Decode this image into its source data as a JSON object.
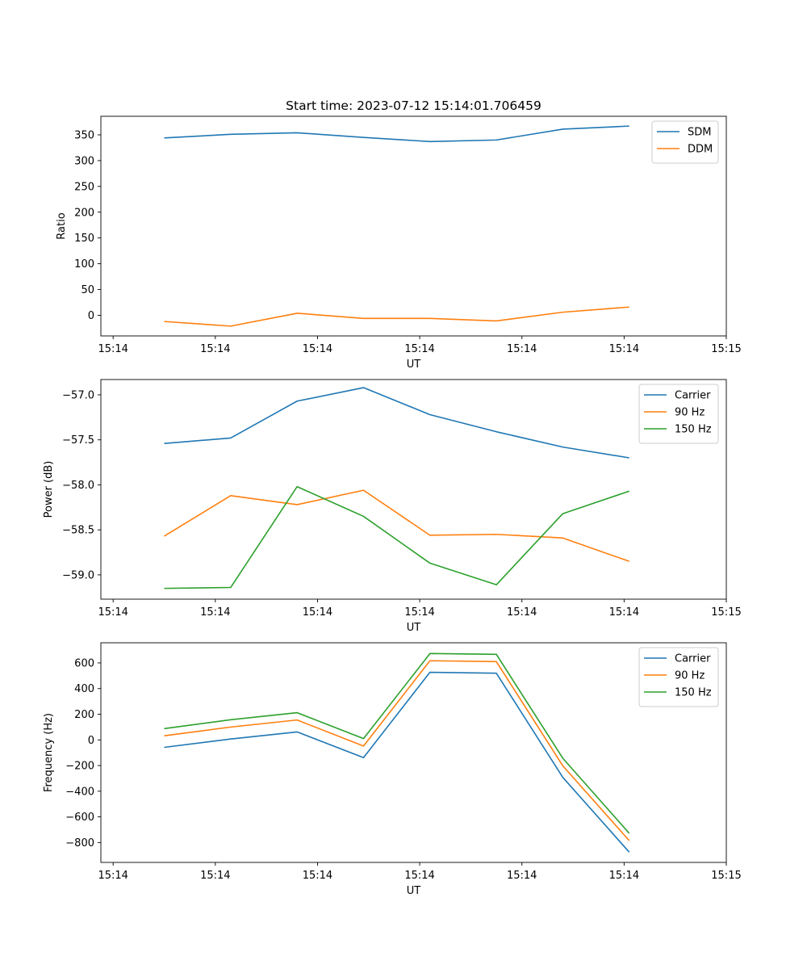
{
  "figure": {
    "title": "Start time: 2023-07-12 15:14:01.706459",
    "x_tick_labels": [
      "15:14",
      "15:14",
      "15:14",
      "15:14",
      "15:14",
      "15:14",
      "15:15"
    ]
  },
  "colors": {
    "series1": "#1f77b4",
    "series2": "#ff7f0e",
    "series3": "#2ca02c"
  },
  "chart_data": [
    {
      "type": "line",
      "title": "Start time: 2023-07-12 15:14:01.706459",
      "xlabel": "UT",
      "ylabel": "Ratio",
      "x": [
        0.5,
        1.15,
        1.8,
        2.45,
        3.1,
        3.75,
        4.4,
        5.05
      ],
      "xlim": [
        -0.12,
        6.0
      ],
      "xticks": [
        0,
        1,
        2,
        3,
        4,
        5,
        6
      ],
      "xtick_labels": [
        "15:14",
        "15:14",
        "15:14",
        "15:14",
        "15:14",
        "15:14",
        "15:15"
      ],
      "ylim": [
        -40,
        386
      ],
      "yticks": [
        0,
        50,
        100,
        150,
        200,
        250,
        300,
        350
      ],
      "ytick_labels": [
        "0",
        "50",
        "100",
        "150",
        "200",
        "250",
        "300",
        "350"
      ],
      "legend_position": "top-right",
      "series": [
        {
          "name": "SDM",
          "color": "#1f77b4",
          "values": [
            344,
            351,
            354,
            345,
            337,
            340,
            361,
            367
          ]
        },
        {
          "name": "DDM",
          "color": "#ff7f0e",
          "values": [
            -12,
            -21,
            4,
            -6,
            -6,
            -11,
            6,
            16
          ]
        }
      ]
    },
    {
      "type": "line",
      "xlabel": "UT",
      "ylabel": "Power (dB)",
      "x": [
        0.5,
        1.15,
        1.8,
        2.45,
        3.1,
        3.75,
        4.4,
        5.05
      ],
      "xlim": [
        -0.12,
        6.0
      ],
      "xticks": [
        0,
        1,
        2,
        3,
        4,
        5,
        6
      ],
      "xtick_labels": [
        "15:14",
        "15:14",
        "15:14",
        "15:14",
        "15:14",
        "15:14",
        "15:15"
      ],
      "ylim": [
        -59.27,
        -56.83
      ],
      "yticks": [
        -59.0,
        -58.5,
        -58.0,
        -57.5,
        -57.0
      ],
      "ytick_labels": [
        "−59.0",
        "−58.5",
        "−58.0",
        "−57.5",
        "−57.0"
      ],
      "legend_position": "top-right",
      "series": [
        {
          "name": "Carrier",
          "color": "#1f77b4",
          "values": [
            -57.54,
            -57.48,
            -57.07,
            -56.92,
            -57.22,
            -57.41,
            -57.58,
            -57.7
          ]
        },
        {
          "name": "90 Hz",
          "color": "#ff7f0e",
          "values": [
            -58.57,
            -58.12,
            -58.22,
            -58.06,
            -58.56,
            -58.55,
            -58.59,
            -58.85
          ]
        },
        {
          "name": "150 Hz",
          "color": "#2ca02c",
          "values": [
            -59.15,
            -59.14,
            -58.02,
            -58.35,
            -58.87,
            -59.11,
            -58.32,
            -58.07
          ]
        }
      ]
    },
    {
      "type": "line",
      "xlabel": "UT",
      "ylabel": "Frequency (Hz)",
      "x": [
        0.5,
        1.15,
        1.8,
        2.45,
        3.1,
        3.75,
        4.4,
        5.05
      ],
      "xlim": [
        -0.12,
        6.0
      ],
      "xticks": [
        0,
        1,
        2,
        3,
        4,
        5,
        6
      ],
      "xtick_labels": [
        "15:14",
        "15:14",
        "15:14",
        "15:14",
        "15:14",
        "15:14",
        "15:15"
      ],
      "ylim": [
        -955,
        757
      ],
      "yticks": [
        -800,
        -600,
        -400,
        -200,
        0,
        200,
        400,
        600
      ],
      "ytick_labels": [
        "−800",
        "−600",
        "−400",
        "−200",
        "0",
        "200",
        "400",
        "600"
      ],
      "legend_position": "top-right",
      "series": [
        {
          "name": "Carrier",
          "color": "#1f77b4",
          "values": [
            -58,
            7,
            62,
            -138,
            527,
            520,
            -292,
            -875
          ]
        },
        {
          "name": "90 Hz",
          "color": "#ff7f0e",
          "values": [
            32,
            100,
            155,
            -48,
            617,
            610,
            -202,
            -785
          ]
        },
        {
          "name": "150 Hz",
          "color": "#2ca02c",
          "values": [
            88,
            157,
            212,
            10,
            673,
            667,
            -143,
            -728
          ]
        }
      ]
    }
  ]
}
